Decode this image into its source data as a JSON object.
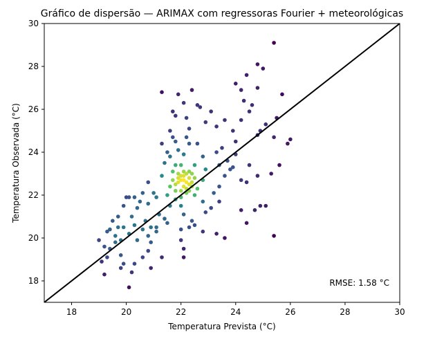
{
  "chart_data": {
    "type": "scatter",
    "title": "Gráfico de dispersão — ARIMAX com regressoras Fourier + meteorológicas",
    "xlabel": "Temperatura Prevista (°C)",
    "ylabel": "Temperatura Observada (°C)",
    "xlim": [
      17,
      30
    ],
    "ylim": [
      17,
      30
    ],
    "xticks": [
      "18",
      "20",
      "22",
      "24",
      "26",
      "28",
      "30"
    ],
    "yticks": [
      "18",
      "20",
      "22",
      "24",
      "26",
      "28",
      "30"
    ],
    "annotation": "RMSE: 1.58 °C",
    "reference_line": {
      "x": [
        17,
        30
      ],
      "y": [
        17,
        30
      ],
      "color": "#000000"
    },
    "colormap": "viridis (point density)",
    "grid": false,
    "points": [
      [
        25.4,
        29.1
      ],
      [
        24.8,
        28.1
      ],
      [
        25.0,
        27.9
      ],
      [
        24.4,
        27.6
      ],
      [
        24.0,
        27.2
      ],
      [
        24.2,
        26.9
      ],
      [
        24.8,
        27.0
      ],
      [
        25.7,
        26.7
      ],
      [
        24.3,
        26.4
      ],
      [
        24.6,
        26.2
      ],
      [
        24.5,
        25.9
      ],
      [
        25.1,
        25.3
      ],
      [
        25.5,
        25.6
      ],
      [
        24.9,
        25.0
      ],
      [
        25.9,
        24.4
      ],
      [
        26.0,
        24.6
      ],
      [
        25.4,
        24.7
      ],
      [
        24.8,
        24.8
      ],
      [
        24.2,
        25.5
      ],
      [
        24.0,
        24.5
      ],
      [
        24.5,
        23.4
      ],
      [
        24.2,
        22.7
      ],
      [
        24.4,
        22.6
      ],
      [
        25.3,
        23.0
      ],
      [
        25.6,
        23.4
      ],
      [
        24.8,
        22.9
      ],
      [
        24.7,
        21.3
      ],
      [
        24.9,
        21.5
      ],
      [
        25.1,
        21.5
      ],
      [
        24.2,
        21.3
      ],
      [
        24.4,
        20.7
      ],
      [
        25.4,
        20.1
      ],
      [
        23.1,
        25.9
      ],
      [
        23.3,
        25.2
      ],
      [
        22.9,
        25.4
      ],
      [
        22.4,
        26.9
      ],
      [
        21.9,
        26.7
      ],
      [
        21.3,
        26.8
      ],
      [
        22.1,
        26.3
      ],
      [
        22.6,
        26.2
      ],
      [
        22.7,
        26.1
      ],
      [
        21.7,
        25.9
      ],
      [
        21.8,
        25.7
      ],
      [
        22.2,
        25.6
      ],
      [
        22.3,
        25.1
      ],
      [
        21.6,
        25.0
      ],
      [
        23.6,
        25.5
      ],
      [
        23.9,
        25.0
      ],
      [
        23.5,
        24.2
      ],
      [
        23.3,
        24.0
      ],
      [
        20.0,
        21.9
      ],
      [
        19.4,
        20.4
      ],
      [
        19.6,
        20.1
      ],
      [
        19.0,
        19.9
      ],
      [
        19.2,
        19.6
      ],
      [
        19.3,
        19.1
      ],
      [
        19.8,
        19.2
      ],
      [
        19.9,
        18.8
      ],
      [
        19.8,
        18.6
      ],
      [
        20.3,
        18.8
      ],
      [
        20.6,
        19.1
      ],
      [
        20.9,
        18.6
      ],
      [
        20.2,
        18.4
      ],
      [
        20.1,
        17.7
      ],
      [
        19.2,
        18.3
      ],
      [
        19.1,
        18.9
      ],
      [
        20.1,
        21.9
      ],
      [
        20.4,
        21.4
      ],
      [
        20.8,
        21.6
      ],
      [
        21.0,
        22.1
      ],
      [
        20.8,
        22.6
      ],
      [
        21.3,
        22.9
      ],
      [
        21.7,
        23.1
      ],
      [
        21.4,
        23.5
      ],
      [
        21.6,
        23.8
      ],
      [
        21.9,
        24.1
      ],
      [
        22.1,
        23.9
      ],
      [
        22.3,
        24.4
      ],
      [
        21.8,
        24.5
      ],
      [
        22.2,
        24.7
      ],
      [
        22.6,
        24.4
      ],
      [
        22.8,
        23.8
      ],
      [
        21.5,
        24.0
      ],
      [
        21.7,
        24.7
      ],
      [
        21.3,
        24.4
      ],
      [
        20.6,
        22.1
      ],
      [
        20.2,
        21.0
      ],
      [
        20.7,
        20.8
      ],
      [
        20.3,
        20.6
      ],
      [
        19.7,
        20.5
      ],
      [
        20.9,
        20.5
      ],
      [
        21.1,
        20.3
      ],
      [
        21.5,
        20.7
      ],
      [
        21.2,
        21.1
      ],
      [
        21.6,
        21.5
      ],
      [
        21.5,
        22.0
      ],
      [
        21.8,
        21.8
      ],
      [
        22.0,
        21.5
      ],
      [
        22.1,
        21.1
      ],
      [
        22.4,
        20.8
      ],
      [
        22.9,
        21.2
      ],
      [
        22.8,
        21.7
      ],
      [
        23.1,
        21.4
      ],
      [
        23.4,
        21.7
      ],
      [
        23.2,
        22.1
      ],
      [
        23.4,
        22.4
      ],
      [
        23.6,
        22.9
      ],
      [
        23.8,
        23.2
      ],
      [
        23.4,
        23.4
      ],
      [
        23.7,
        23.6
      ],
      [
        24.0,
        23.9
      ],
      [
        23.9,
        23.3
      ],
      [
        22.5,
        22.0
      ],
      [
        22.6,
        22.3
      ],
      [
        22.8,
        22.7
      ],
      [
        22.9,
        23.2
      ],
      [
        22.5,
        23.4
      ],
      [
        22.1,
        23.1
      ],
      [
        21.8,
        23.4
      ],
      [
        21.9,
        22.8
      ],
      [
        21.6,
        22.4
      ],
      [
        21.8,
        22.2
      ],
      [
        22.0,
        21.9
      ],
      [
        22.2,
        22.1
      ],
      [
        22.4,
        22.4
      ],
      [
        22.5,
        22.8
      ],
      [
        22.3,
        23.1
      ],
      [
        22.0,
        23.4
      ],
      [
        22.0,
        22.9
      ],
      [
        21.9,
        22.6
      ],
      [
        22.2,
        22.6
      ],
      [
        22.3,
        22.2
      ],
      [
        22.1,
        22.4
      ],
      [
        22.0,
        22.7
      ],
      [
        22.2,
        23.0
      ],
      [
        21.8,
        22.5
      ],
      [
        22.3,
        22.8
      ],
      [
        22.1,
        22.9
      ],
      [
        22.0,
        22.2
      ],
      [
        22.4,
        22.6
      ],
      [
        21.9,
        23.0
      ],
      [
        22.2,
        22.3
      ],
      [
        22.1,
        22.7
      ],
      [
        22.3,
        22.5
      ],
      [
        21.7,
        22.7
      ],
      [
        22.4,
        23.0
      ],
      [
        20.5,
        21.7
      ],
      [
        20.3,
        21.9
      ],
      [
        19.9,
        21.5
      ],
      [
        19.7,
        21.0
      ],
      [
        19.5,
        20.8
      ],
      [
        19.9,
        20.5
      ],
      [
        20.1,
        20.2
      ],
      [
        20.4,
        19.9
      ],
      [
        20.6,
        20.4
      ],
      [
        20.9,
        19.8
      ],
      [
        20.8,
        20.1
      ],
      [
        19.6,
        19.8
      ],
      [
        19.4,
        19.5
      ],
      [
        19.8,
        19.9
      ],
      [
        19.3,
        20.3
      ],
      [
        22.5,
        20.6
      ],
      [
        22.3,
        20.5
      ],
      [
        22.8,
        20.3
      ],
      [
        22.0,
        20.4
      ],
      [
        21.1,
        21.9
      ],
      [
        21.4,
        20.9
      ],
      [
        21.1,
        20.5
      ],
      [
        20.8,
        19.4
      ],
      [
        21.3,
        19.1
      ],
      [
        22.0,
        19.9
      ],
      [
        22.1,
        19.5
      ],
      [
        22.1,
        19.1
      ],
      [
        23.6,
        20.0
      ],
      [
        23.3,
        20.2
      ]
    ]
  }
}
